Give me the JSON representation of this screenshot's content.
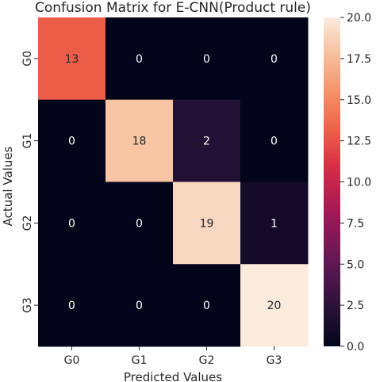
{
  "chart_data": {
    "type": "heatmap",
    "title": "Confusion Matrix for E-CNN(Product rule)",
    "xlabel": "Predicted Values",
    "ylabel": "Actual Values",
    "x_categories": [
      "G0",
      "G1",
      "G2",
      "G3"
    ],
    "y_categories": [
      "G0",
      "G1",
      "G2",
      "G3"
    ],
    "values": [
      [
        13,
        0,
        0,
        0
      ],
      [
        0,
        18,
        2,
        0
      ],
      [
        0,
        0,
        19,
        1
      ],
      [
        0,
        0,
        0,
        20
      ]
    ],
    "colorbar": {
      "range": [
        0,
        20
      ],
      "ticks": [
        "0.0",
        "2.5",
        "5.0",
        "7.5",
        "10.0",
        "12.5",
        "15.0",
        "17.5",
        "20.0"
      ],
      "colormap": "rocket"
    }
  }
}
